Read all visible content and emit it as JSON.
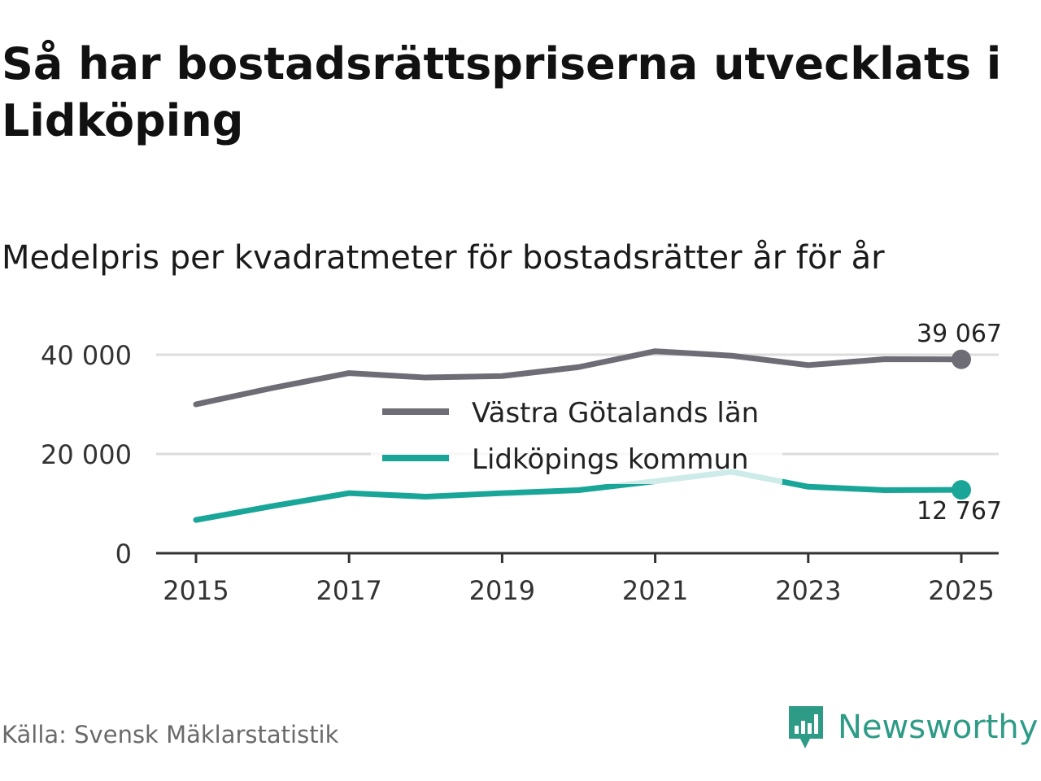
{
  "header": {
    "title": "Så har bostadsrättspriserna utvecklats i Lidköping",
    "subtitle": "Medelpris per kvadratmeter för bostadsrätter år för år"
  },
  "footer": {
    "source": "Källa: Svensk Mäklarstatistik",
    "brand": "Newsworthy"
  },
  "colors": {
    "vastra": "#6e6d76",
    "lidkoping": "#19a699",
    "grid": "#dcdcdc",
    "axis": "#333333",
    "brand": "#2e9b86"
  },
  "chart_data": {
    "type": "line",
    "title": "Medelpris per kvadratmeter för bostadsrätter år för år",
    "xlabel": "",
    "ylabel": "",
    "x": [
      2015,
      2016,
      2017,
      2018,
      2019,
      2020,
      2021,
      2022,
      2023,
      2024,
      2025
    ],
    "xticks": [
      "2015",
      "2017",
      "2019",
      "2021",
      "2023",
      "2025"
    ],
    "yticks": [
      0,
      20000,
      40000
    ],
    "ytick_labels": [
      "0",
      "20 000",
      "40 000"
    ],
    "xlim": [
      2014.5,
      2025.5
    ],
    "ylim": [
      0,
      45000
    ],
    "grid": true,
    "legend_position": "center",
    "series": [
      {
        "name": "Västra Götalands län",
        "key": "vastra",
        "values": [
          30000,
          33300,
          36300,
          35400,
          35700,
          37500,
          40700,
          39800,
          37900,
          39100,
          39067
        ],
        "end_label": "39 067"
      },
      {
        "name": "Lidköpings kommun",
        "key": "lidkoping",
        "values": [
          6700,
          9500,
          12100,
          11400,
          12100,
          12700,
          14500,
          16400,
          13400,
          12700,
          12767
        ],
        "end_label": "12 767"
      }
    ]
  }
}
